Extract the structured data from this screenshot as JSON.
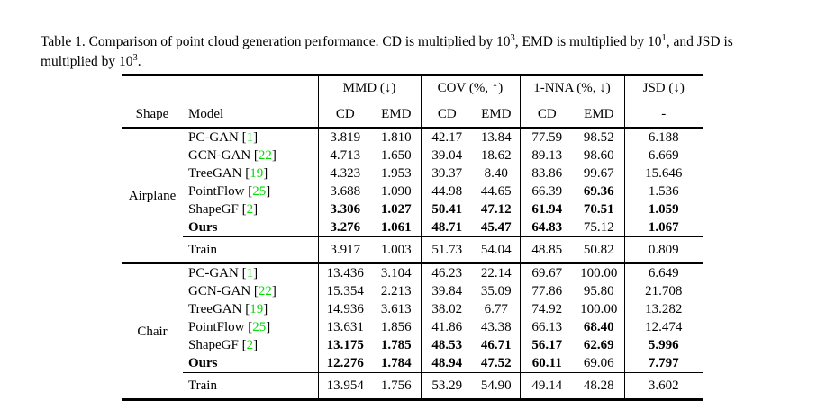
{
  "colors": {
    "citation_green": "#00dd00",
    "text": "#000000",
    "background": "#ffffff"
  },
  "caption": {
    "s0": "Table 1. Comparison of point cloud generation performance. CD is multiplied by 10",
    "sup0": "3",
    "s1": ", EMD is multiplied by 10",
    "sup1": "1",
    "s2": ", and JSD is multiplied by 10",
    "sup2": "3",
    "s3": "."
  },
  "table": {
    "col_headers": {
      "shape": "Shape",
      "model": "Model",
      "groups": [
        "MMD (↓)",
        "COV (%, ↑)",
        "1-NNA (%, ↓)",
        "JSD (↓)"
      ],
      "sub_headers": [
        "CD",
        "EMD",
        "CD",
        "EMD",
        "CD",
        "EMD",
        "-"
      ]
    },
    "sections": [
      {
        "shape": "Airplane",
        "rows": [
          {
            "model": "PC-GAN",
            "cite": "1",
            "model_bold": false,
            "values": [
              "3.819",
              "1.810",
              "42.17",
              "13.84",
              "77.59",
              "98.52",
              "6.188"
            ],
            "bold": [
              false,
              false,
              false,
              false,
              false,
              false,
              false
            ]
          },
          {
            "model": "GCN-GAN",
            "cite": "22",
            "model_bold": false,
            "values": [
              "4.713",
              "1.650",
              "39.04",
              "18.62",
              "89.13",
              "98.60",
              "6.669"
            ],
            "bold": [
              false,
              false,
              false,
              false,
              false,
              false,
              false
            ]
          },
          {
            "model": "TreeGAN",
            "cite": "19",
            "model_bold": false,
            "values": [
              "4.323",
              "1.953",
              "39.37",
              "8.40",
              "83.86",
              "99.67",
              "15.646"
            ],
            "bold": [
              false,
              false,
              false,
              false,
              false,
              false,
              false
            ]
          },
          {
            "model": "PointFlow",
            "cite": "25",
            "model_bold": false,
            "values": [
              "3.688",
              "1.090",
              "44.98",
              "44.65",
              "66.39",
              "69.36",
              "1.536"
            ],
            "bold": [
              false,
              false,
              false,
              false,
              false,
              true,
              false
            ]
          },
          {
            "model": "ShapeGF",
            "cite": "2",
            "model_bold": false,
            "values": [
              "3.306",
              "1.027",
              "50.41",
              "47.12",
              "61.94",
              "70.51",
              "1.059"
            ],
            "bold": [
              true,
              true,
              true,
              true,
              true,
              true,
              true
            ]
          },
          {
            "model": "Ours",
            "cite": null,
            "model_bold": true,
            "values": [
              "3.276",
              "1.061",
              "48.71",
              "45.47",
              "64.83",
              "75.12",
              "1.067"
            ],
            "bold": [
              true,
              true,
              true,
              true,
              true,
              false,
              true
            ]
          }
        ],
        "train_row": {
          "model": "Train",
          "values": [
            "3.917",
            "1.003",
            "51.73",
            "54.04",
            "48.85",
            "50.82",
            "0.809"
          ]
        }
      },
      {
        "shape": "Chair",
        "rows": [
          {
            "model": "PC-GAN",
            "cite": "1",
            "model_bold": false,
            "values": [
              "13.436",
              "3.104",
              "46.23",
              "22.14",
              "69.67",
              "100.00",
              "6.649"
            ],
            "bold": [
              false,
              false,
              false,
              false,
              false,
              false,
              false
            ]
          },
          {
            "model": "GCN-GAN",
            "cite": "22",
            "model_bold": false,
            "values": [
              "15.354",
              "2.213",
              "39.84",
              "35.09",
              "77.86",
              "95.80",
              "21.708"
            ],
            "bold": [
              false,
              false,
              false,
              false,
              false,
              false,
              false
            ]
          },
          {
            "model": "TreeGAN",
            "cite": "19",
            "model_bold": false,
            "values": [
              "14.936",
              "3.613",
              "38.02",
              "6.77",
              "74.92",
              "100.00",
              "13.282"
            ],
            "bold": [
              false,
              false,
              false,
              false,
              false,
              false,
              false
            ]
          },
          {
            "model": "PointFlow",
            "cite": "25",
            "model_bold": false,
            "values": [
              "13.631",
              "1.856",
              "41.86",
              "43.38",
              "66.13",
              "68.40",
              "12.474"
            ],
            "bold": [
              false,
              false,
              false,
              false,
              false,
              true,
              false
            ]
          },
          {
            "model": "ShapeGF",
            "cite": "2",
            "model_bold": false,
            "values": [
              "13.175",
              "1.785",
              "48.53",
              "46.71",
              "56.17",
              "62.69",
              "5.996"
            ],
            "bold": [
              true,
              true,
              true,
              true,
              true,
              true,
              true
            ]
          },
          {
            "model": "Ours",
            "cite": null,
            "model_bold": true,
            "values": [
              "12.276",
              "1.784",
              "48.94",
              "47.52",
              "60.11",
              "69.06",
              "7.797"
            ],
            "bold": [
              true,
              true,
              true,
              true,
              true,
              false,
              true
            ]
          }
        ],
        "train_row": {
          "model": "Train",
          "values": [
            "13.954",
            "1.756",
            "53.29",
            "54.90",
            "49.14",
            "48.28",
            "3.602"
          ]
        }
      }
    ]
  }
}
